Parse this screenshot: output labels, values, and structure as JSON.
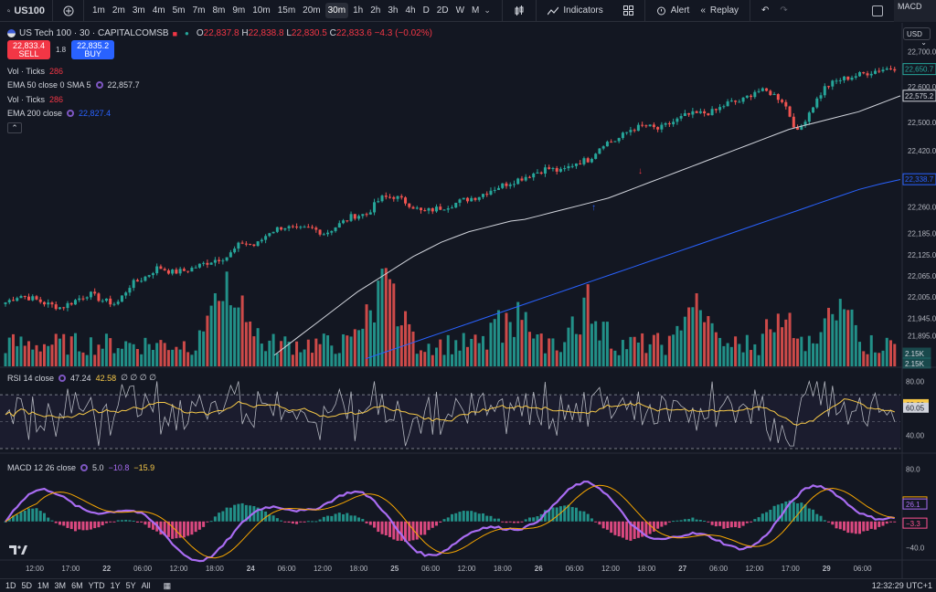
{
  "toolbar": {
    "symbol": "US100",
    "intervals": [
      "1m",
      "2m",
      "3m",
      "4m",
      "5m",
      "7m",
      "8m",
      "9m",
      "10m",
      "15m",
      "20m",
      "30m",
      "1h",
      "2h",
      "3h",
      "4h",
      "D",
      "2D",
      "W",
      "M"
    ],
    "active_interval": "30m",
    "indicators_label": "Indicators",
    "alert_label": "Alert",
    "replay_label": "Replay",
    "macd_corner": "MACD"
  },
  "legend": {
    "title": "US Tech 100 · 30 · CAPITALCOMSB",
    "open_label": "O",
    "open": "22,837.8",
    "high_label": "H",
    "high": "22,838.8",
    "low_label": "L",
    "low": "22,830.5",
    "close_label": "C",
    "close": "22,833.6",
    "change": "−4.3 (−0.02%)",
    "sell_price": "22,833.4",
    "sell_label": "SELL",
    "spread": "1.8",
    "buy_price": "22,835.2",
    "buy_label": "BUY",
    "vol1_label": "Vol · Ticks",
    "vol1_value": "286",
    "ema50_label": "EMA 50 close 0 SMA 5",
    "ema50_value": "22,857.7",
    "vol2_label": "Vol · Ticks",
    "vol2_value": "286",
    "ema200_label": "EMA 200 close",
    "ema200_value": "22,827.4",
    "currency": "USD",
    "rsi_label": "RSI 14 close",
    "rsi_value": "47.24",
    "rsi_ma_value": "42.58",
    "rsi_extra": "∅ ∅ ∅ ∅",
    "macd_label": "MACD 12 26 close",
    "macd_hist": "5.0",
    "macd_line": "−10.8",
    "macd_signal": "−15.9"
  },
  "chart_data": [
    {
      "type": "candlestick",
      "axis": "right",
      "y_ticks": [
        22700,
        22600,
        22500,
        22420,
        22338.7,
        22260,
        22185,
        22125,
        22065,
        22005,
        21945,
        21895
      ],
      "y_tick_labels": [
        "22,700.0",
        "22,600.0",
        "22,500.0",
        "22,420.0",
        "22,338.7",
        "22,260.0",
        "22,185.0",
        "22,125.0",
        "22,065.0",
        "22,005.0",
        "21,945.0",
        "21,895.0"
      ],
      "ylim": [
        21850,
        22730
      ],
      "price_badges": [
        {
          "label": "22,650.7",
          "value": 22650.7,
          "color": "#26a69a"
        },
        {
          "label": "22,575.2",
          "value": 22575.2,
          "color": "#d1d4dc"
        },
        {
          "label": "22,338.7",
          "value": 22338.7,
          "color": "#2962ff"
        }
      ],
      "volume_badges": [
        "2.15K",
        "2.15K"
      ],
      "x_ticks": [
        "12:00",
        "17:00",
        "22",
        "06:00",
        "12:00",
        "18:00",
        "24",
        "06:00",
        "12:00",
        "18:00",
        "25",
        "06:00",
        "12:00",
        "18:00",
        "26",
        "06:00",
        "12:00",
        "18:00",
        "27",
        "06:00",
        "12:00",
        "17:00",
        "29",
        "06:00"
      ],
      "close_path": [
        21990,
        22010,
        22000,
        21985,
        21975,
        21995,
        22015,
        21995,
        21985,
        22040,
        22060,
        22090,
        22075,
        22080,
        22095,
        22110,
        22120,
        22160,
        22150,
        22190,
        22205,
        22195,
        22200,
        22185,
        22210,
        22235,
        22240,
        22285,
        22290,
        22270,
        22245,
        22255,
        22265,
        22280,
        22290,
        22310,
        22325,
        22340,
        22355,
        22370,
        22360,
        22385,
        22395,
        22440,
        22450,
        22480,
        22490,
        22480,
        22500,
        22520,
        22525,
        22530,
        22555,
        22560,
        22590,
        22585,
        22560,
        22470,
        22540,
        22600,
        22620,
        22630,
        22640,
        22650,
        22655
      ],
      "ema50": [
        21840,
        21870,
        21900,
        21930,
        21960,
        21990,
        22020,
        22045,
        22070,
        22095,
        22120,
        22140,
        22160,
        22175,
        22190,
        22200,
        22210,
        22220,
        22225,
        22235,
        22245,
        22255,
        22265,
        22275,
        22285,
        22300,
        22315,
        22330,
        22345,
        22360,
        22375,
        22390,
        22405,
        22420,
        22435,
        22450,
        22465,
        22480,
        22490,
        22500,
        22510,
        22520,
        22530,
        22545,
        22560,
        22575
      ],
      "ema200": [
        21830,
        21850,
        21870,
        21890,
        21910,
        21930,
        21950,
        21970,
        21990,
        22010,
        22030,
        22050,
        22070,
        22090,
        22110,
        22130,
        22150,
        22170,
        22190,
        22210,
        22230,
        22250,
        22270,
        22290,
        22310,
        22325,
        22338
      ]
    },
    {
      "type": "line",
      "name": "RSI 14 close",
      "y_ticks": [
        80,
        62.66,
        60.05,
        40
      ],
      "y_tick_labels": [
        "80.00",
        "62.66",
        "60.05",
        "40.00"
      ],
      "ylim": [
        30,
        85
      ],
      "band": [
        30,
        70
      ]
    },
    {
      "type": "bar",
      "name": "MACD 12 26 close",
      "y_ticks": [
        80,
        29.3,
        26.1,
        -3.3,
        -40
      ],
      "y_tick_labels": [
        "80.0",
        "29.3",
        "26.1",
        "−3.3",
        "−40.0"
      ],
      "ylim": [
        -55,
        95
      ]
    }
  ],
  "bottombar": {
    "ranges": [
      "1D",
      "5D",
      "1M",
      "3M",
      "6M",
      "YTD",
      "1Y",
      "5Y",
      "All"
    ],
    "clock": "12:32:29 UTC+1"
  },
  "colors": {
    "up": "#26a69a",
    "down": "#ef5350",
    "ema50": "#d1d4dc",
    "ema200": "#2962ff",
    "rsi": "#b2b5be",
    "rsi_ma": "#f7c948",
    "macd": "#a96cf2",
    "signal": "#f7a600"
  }
}
